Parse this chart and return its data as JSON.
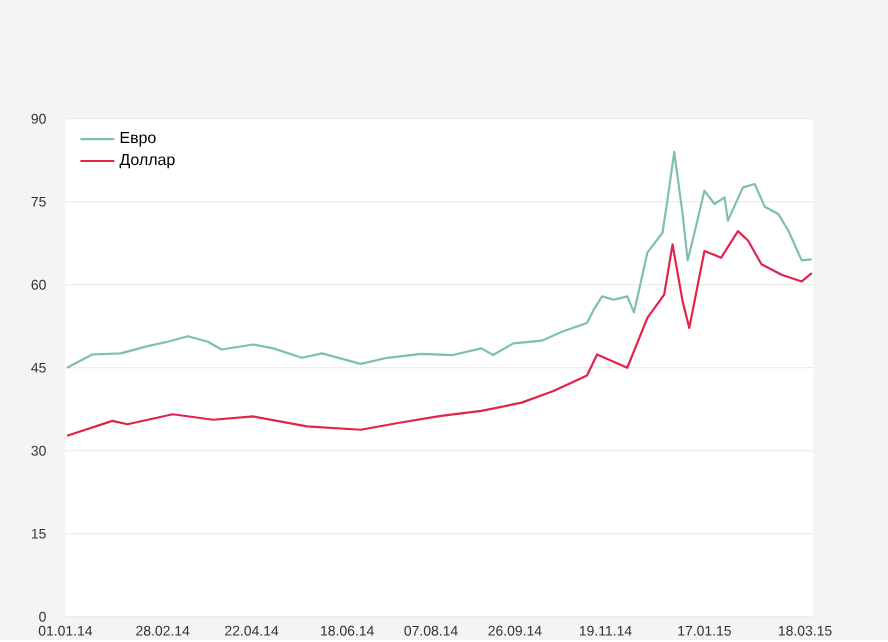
{
  "chart_data": {
    "type": "line",
    "series": [
      {
        "name": "Евро",
        "color": "#7fbfae",
        "x": [
          "2014-01-02",
          "2014-01-17",
          "2014-02-03",
          "2014-02-19",
          "2014-03-03",
          "2014-03-15",
          "2014-03-27",
          "2014-04-04",
          "2014-04-23",
          "2014-05-05",
          "2014-05-22",
          "2014-06-03",
          "2014-06-26",
          "2014-07-12",
          "2014-08-01",
          "2014-08-20",
          "2014-09-06",
          "2014-09-13",
          "2014-09-25",
          "2014-10-12",
          "2014-10-24",
          "2014-11-08",
          "2014-11-12",
          "2014-11-17",
          "2014-11-24",
          "2014-12-02",
          "2014-12-06",
          "2014-12-14",
          "2014-12-23",
          "2014-12-26",
          "2014-12-30",
          "2015-01-04",
          "2015-01-07",
          "2015-01-11",
          "2015-01-17",
          "2015-01-23",
          "2015-01-29",
          "2015-01-31",
          "2015-02-09",
          "2015-02-16",
          "2015-02-22",
          "2015-03-02",
          "2015-03-08",
          "2015-03-16",
          "2015-03-22"
        ],
        "values": [
          45.0,
          47.4,
          47.6,
          48.9,
          49.7,
          50.7,
          49.7,
          48.3,
          49.2,
          48.5,
          46.8,
          47.6,
          45.7,
          46.8,
          47.5,
          47.3,
          48.5,
          47.3,
          49.4,
          49.9,
          51.5,
          53.1,
          55.5,
          57.9,
          57.3,
          57.9,
          55.0,
          65.8,
          69.4,
          75.4,
          84.0,
          72.8,
          64.4,
          69.3,
          77.0,
          74.6,
          75.8,
          71.6,
          77.6,
          78.2,
          74.1,
          72.8,
          69.8,
          64.4,
          64.6
        ]
      },
      {
        "name": "Доллар",
        "color": "#e0244c",
        "x": [
          "2014-01-02",
          "2014-01-29",
          "2014-02-07",
          "2014-03-06",
          "2014-03-30",
          "2014-04-23",
          "2014-05-25",
          "2014-06-26",
          "2014-07-20",
          "2014-08-13",
          "2014-09-06",
          "2014-09-30",
          "2014-10-19",
          "2014-11-08",
          "2014-11-14",
          "2014-12-02",
          "2014-12-14",
          "2014-12-24",
          "2014-12-29",
          "2015-01-04",
          "2015-01-08",
          "2015-01-17",
          "2015-01-27",
          "2015-02-06",
          "2015-02-12",
          "2015-02-20",
          "2015-03-04",
          "2015-03-16",
          "2015-03-22"
        ],
        "values": [
          32.7,
          35.4,
          34.8,
          36.6,
          35.6,
          36.2,
          34.4,
          33.8,
          35.1,
          36.3,
          37.2,
          38.7,
          40.8,
          43.6,
          47.4,
          45.0,
          54.0,
          58.2,
          67.3,
          57.0,
          52.2,
          66.1,
          64.9,
          69.7,
          68.0,
          63.7,
          61.8,
          60.6,
          62.1
        ]
      }
    ],
    "xlim": [
      "2014-01-01",
      "2015-03-23"
    ],
    "xticks": [
      {
        "value": "2014-01-01",
        "label": "01.01.14"
      },
      {
        "value": "2014-02-28",
        "label": "28.02.14"
      },
      {
        "value": "2014-04-22",
        "label": "22.04.14"
      },
      {
        "value": "2014-06-18",
        "label": "18.06.14"
      },
      {
        "value": "2014-08-07",
        "label": "07.08.14"
      },
      {
        "value": "2014-09-26",
        "label": "26.09.14"
      },
      {
        "value": "2014-11-19",
        "label": "19.11.14"
      },
      {
        "value": "2015-01-17",
        "label": "17.01.15"
      },
      {
        "value": "2015-03-18",
        "label": "18.03.15"
      }
    ],
    "ylim": [
      0,
      90
    ],
    "yticks": [
      0,
      15,
      30,
      45,
      60,
      75,
      90
    ],
    "grid": "y",
    "legend": "top left",
    "marker": "none",
    "line_style": "solid"
  }
}
